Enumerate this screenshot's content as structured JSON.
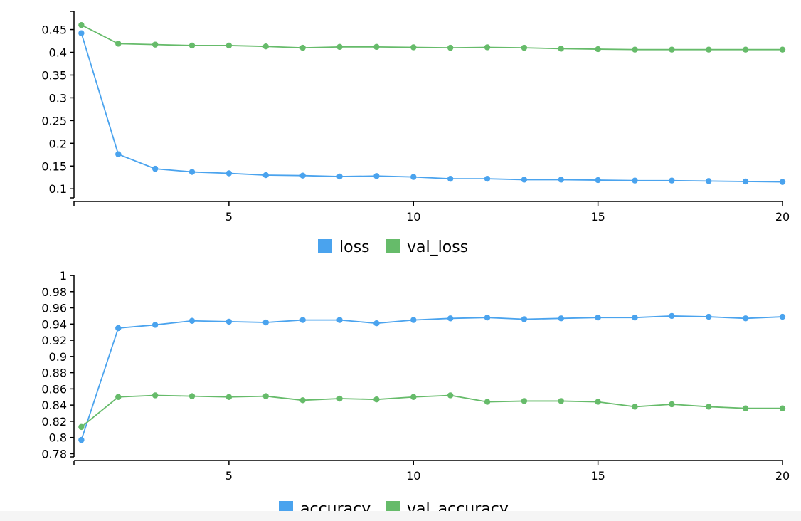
{
  "colors": {
    "train": "#4aa3ee",
    "val": "#66bb6a"
  },
  "chart_data": [
    {
      "type": "line",
      "x": [
        1,
        2,
        3,
        4,
        5,
        6,
        7,
        8,
        9,
        10,
        11,
        12,
        13,
        14,
        15,
        16,
        17,
        18,
        19,
        20
      ],
      "xlim": [
        0.8,
        20
      ],
      "xticks": [
        5,
        10,
        15,
        20
      ],
      "ylim": [
        0.08,
        0.49
      ],
      "yticks": [
        0.1,
        0.15,
        0.2,
        0.25,
        0.3,
        0.35,
        0.4,
        0.45
      ],
      "ytick_labels": [
        "0.1",
        "0.15",
        "0.2",
        "0.25",
        "0.3",
        "0.35",
        "0.4",
        "0.45"
      ],
      "legend_position": "bottom-center",
      "series": [
        {
          "name": "loss",
          "values": [
            0.442,
            0.176,
            0.144,
            0.137,
            0.134,
            0.13,
            0.129,
            0.127,
            0.128,
            0.126,
            0.122,
            0.122,
            0.12,
            0.12,
            0.119,
            0.118,
            0.118,
            0.117,
            0.116,
            0.115
          ]
        },
        {
          "name": "val_loss",
          "values": [
            0.46,
            0.419,
            0.417,
            0.415,
            0.415,
            0.413,
            0.41,
            0.412,
            0.412,
            0.411,
            0.41,
            0.411,
            0.41,
            0.408,
            0.407,
            0.406,
            0.406,
            0.406,
            0.406,
            0.406
          ]
        }
      ]
    },
    {
      "type": "line",
      "x": [
        1,
        2,
        3,
        4,
        5,
        6,
        7,
        8,
        9,
        10,
        11,
        12,
        13,
        14,
        15,
        16,
        17,
        18,
        19,
        20
      ],
      "xlim": [
        0.8,
        20
      ],
      "xticks": [
        5,
        10,
        15,
        20
      ],
      "ylim": [
        0.776,
        1.0
      ],
      "yticks": [
        0.78,
        0.8,
        0.82,
        0.84,
        0.86,
        0.88,
        0.9,
        0.92,
        0.94,
        0.96,
        0.98,
        1.0
      ],
      "ytick_labels": [
        "0.78",
        "0.8",
        "0.82",
        "0.84",
        "0.86",
        "0.88",
        "0.9",
        "0.92",
        "0.94",
        "0.96",
        "0.98",
        "1"
      ],
      "legend_position": "bottom-center",
      "series": [
        {
          "name": "accuracy",
          "values": [
            0.797,
            0.935,
            0.939,
            0.944,
            0.943,
            0.942,
            0.945,
            0.945,
            0.941,
            0.945,
            0.947,
            0.948,
            0.946,
            0.947,
            0.948,
            0.948,
            0.95,
            0.949,
            0.947,
            0.949
          ]
        },
        {
          "name": "val_accuracy",
          "values": [
            0.813,
            0.85,
            0.852,
            0.851,
            0.85,
            0.851,
            0.846,
            0.848,
            0.847,
            0.85,
            0.852,
            0.844,
            0.845,
            0.845,
            0.844,
            0.838,
            0.841,
            0.838,
            0.836,
            0.836
          ]
        }
      ]
    }
  ]
}
